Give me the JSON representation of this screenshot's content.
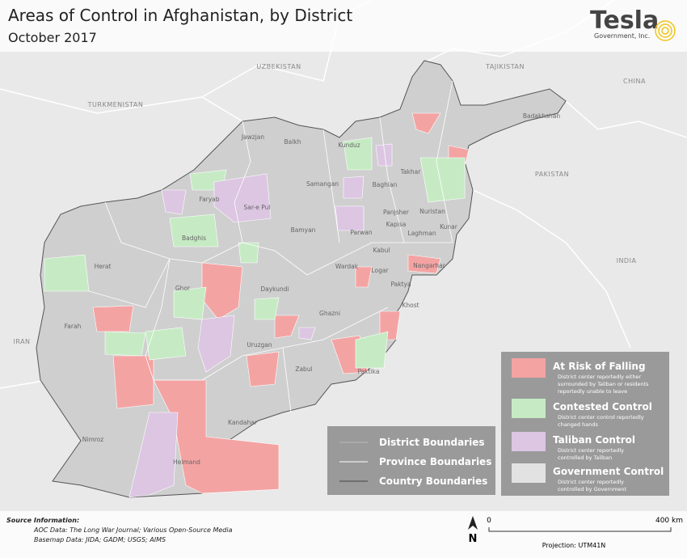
{
  "header": {
    "title": "Areas of Control in Afghanistan, by District",
    "subtitle": "October 2017"
  },
  "logo": {
    "name": "Tesla",
    "tagline": "Government, Inc."
  },
  "countries": [
    "UZBEKISTAN",
    "TAJIKISTAN",
    "TURKMENISTAN",
    "CHINA",
    "PAKISTAN",
    "INDIA",
    "IRAN"
  ],
  "provinces": [
    "Jawzjan",
    "Balkh",
    "Kunduz",
    "Badakhshan",
    "Takhar",
    "Samangan",
    "Baghlan",
    "Faryab",
    "Sar-e Pul",
    "Badghis",
    "Bamyan",
    "Panjsher",
    "Nuristan",
    "Parwan",
    "Kapisa",
    "Laghman",
    "Kunar",
    "Herat",
    "Wardak",
    "Kabul",
    "Nangarhar",
    "Logar",
    "Paktya",
    "Ghor",
    "Daykundi",
    "Khost",
    "Farah",
    "Ghazni",
    "Uruzgan",
    "Paktika",
    "Zabul",
    "Kandahar",
    "Nimroz",
    "Helmand"
  ],
  "legend": {
    "control": [
      {
        "label": "At Risk of Falling",
        "color": "#f4a3a3",
        "description": [
          "District center reportedly either",
          "surrounded by Taliban or residents",
          "reportedly unable to leave"
        ]
      },
      {
        "label": "Contested Control",
        "color": "#c6ebc4",
        "description": [
          "District center control reportedly",
          "changed hands"
        ]
      },
      {
        "label": "Taliban Control",
        "color": "#dcc6e2",
        "description": [
          "District center reportedly",
          "controlled by Taliban"
        ]
      },
      {
        "label": "Government Control",
        "color": "#e2e2e2",
        "description": [
          "District center reportedly",
          "controlled by Government"
        ]
      }
    ],
    "boundaries": [
      "District Boundaries",
      "Province Boundaries",
      "Country Boundaries"
    ]
  },
  "source": {
    "heading": "Source Information:",
    "lines": [
      "AOC Data: The Long War Journal; Various Open-Source Media",
      "Basemap Data: JIDA; GADM; USGS; AIMS"
    ]
  },
  "scale": {
    "start": "0",
    "end": "400 km"
  },
  "north": "N",
  "projection": "Projection: UTM41N"
}
